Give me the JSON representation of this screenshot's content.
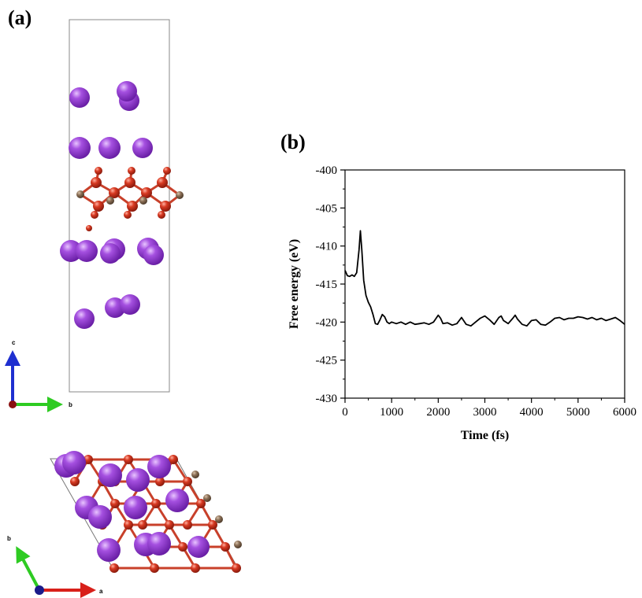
{
  "panel_labels": {
    "a": "(a)",
    "b": "(b)"
  },
  "structure": {
    "side_view_axes": {
      "vertical": "c",
      "horizontal": "b"
    },
    "top_view_axes": {
      "diagonal": "b",
      "horizontal": "a"
    },
    "colors": {
      "large_atom": "#9b3fd6",
      "small_atom": "#d03a22",
      "bridge_atom": "#8a6e55",
      "bond": "#c8402a"
    }
  },
  "chart_data": {
    "type": "line",
    "xlabel": "Time (fs)",
    "ylabel": "Free energy (eV)",
    "xlim": [
      0,
      6000
    ],
    "ylim": [
      -430,
      -400
    ],
    "xticks": [
      0,
      1000,
      2000,
      3000,
      4000,
      5000,
      6000
    ],
    "yticks": [
      -400,
      -405,
      -410,
      -415,
      -420,
      -425,
      -430
    ],
    "grid": false,
    "color": "#000000",
    "series": [
      {
        "x": [
          0,
          50,
          100,
          150,
          200,
          250,
          300,
          330,
          360,
          400,
          450,
          500,
          550,
          600,
          650,
          700,
          750,
          800,
          850,
          900,
          950,
          1000,
          1100,
          1200,
          1300,
          1400,
          1500,
          1600,
          1700,
          1800,
          1900,
          2000,
          2050,
          2100,
          2200,
          2300,
          2400,
          2500,
          2600,
          2700,
          2800,
          2900,
          3000,
          3100,
          3200,
          3300,
          3350,
          3400,
          3500,
          3600,
          3650,
          3700,
          3800,
          3900,
          4000,
          4100,
          4200,
          4300,
          4400,
          4500,
          4600,
          4700,
          4800,
          4900,
          5000,
          5100,
          5200,
          5300,
          5400,
          5500,
          5600,
          5700,
          5800,
          5900,
          6000
        ],
        "values": [
          -413.2,
          -413.9,
          -414.0,
          -413.8,
          -414.0,
          -413.5,
          -410.5,
          -408.0,
          -410.5,
          -414.5,
          -416.5,
          -417.4,
          -418.0,
          -419.0,
          -420.2,
          -420.3,
          -419.7,
          -419.0,
          -419.3,
          -420.0,
          -420.2,
          -420.0,
          -420.2,
          -420.0,
          -420.3,
          -420.0,
          -420.3,
          -420.2,
          -420.1,
          -420.3,
          -420.0,
          -419.1,
          -419.5,
          -420.2,
          -420.1,
          -420.4,
          -420.2,
          -419.4,
          -420.3,
          -420.5,
          -420.0,
          -419.5,
          -419.2,
          -419.7,
          -420.3,
          -419.4,
          -419.2,
          -419.8,
          -420.2,
          -419.5,
          -419.1,
          -419.6,
          -420.3,
          -420.5,
          -419.8,
          -419.7,
          -420.3,
          -420.4,
          -420.0,
          -419.5,
          -419.4,
          -419.7,
          -419.5,
          -419.5,
          -419.3,
          -419.4,
          -419.6,
          -419.4,
          -419.7,
          -419.5,
          -419.8,
          -419.6,
          -419.4,
          -419.8,
          -420.3
        ]
      }
    ]
  }
}
